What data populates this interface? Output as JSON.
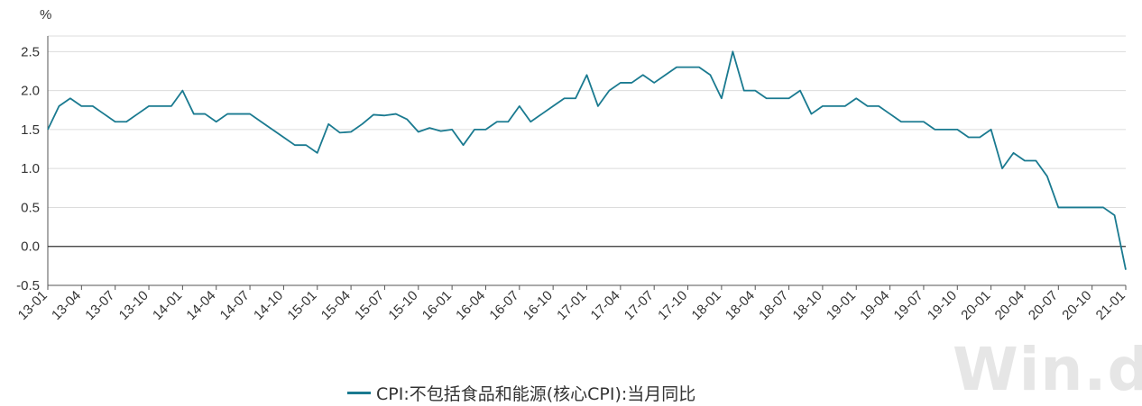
{
  "watermark": "Win.d",
  "chart_data": {
    "type": "line",
    "title": "",
    "xlabel": "",
    "ylabel": "%",
    "ylim": [
      -0.5,
      2.7
    ],
    "yticks": [
      "2.5",
      "2.0",
      "1.5",
      "1.0",
      "0.5",
      "0.0",
      "-0.5"
    ],
    "ytick_values": [
      2.5,
      2.0,
      1.5,
      1.0,
      0.5,
      0.0,
      -0.5
    ],
    "grid": "horizontal",
    "legend_position": "bottom",
    "xtick_labels": [
      "13-01",
      "13-04",
      "13-07",
      "13-10",
      "14-01",
      "14-04",
      "14-07",
      "14-10",
      "15-01",
      "15-04",
      "15-07",
      "15-10",
      "16-01",
      "16-04",
      "16-07",
      "16-10",
      "17-01",
      "17-04",
      "17-07",
      "17-10",
      "18-01",
      "18-04",
      "18-07",
      "18-10",
      "19-01",
      "19-04",
      "19-07",
      "19-10",
      "20-01",
      "20-04",
      "20-07",
      "20-10",
      "21-01"
    ],
    "x": [
      "13-01",
      "13-02",
      "13-03",
      "13-04",
      "13-05",
      "13-06",
      "13-07",
      "13-08",
      "13-09",
      "13-10",
      "13-11",
      "13-12",
      "14-01",
      "14-02",
      "14-03",
      "14-04",
      "14-05",
      "14-06",
      "14-07",
      "14-08",
      "14-09",
      "14-10",
      "14-11",
      "14-12",
      "15-01",
      "15-02",
      "15-03",
      "15-04",
      "15-05",
      "15-06",
      "15-07",
      "15-08",
      "15-09",
      "15-10",
      "15-11",
      "15-12",
      "16-01",
      "16-02",
      "16-03",
      "16-04",
      "16-05",
      "16-06",
      "16-07",
      "16-08",
      "16-09",
      "16-10",
      "16-11",
      "16-12",
      "17-01",
      "17-02",
      "17-03",
      "17-04",
      "17-05",
      "17-06",
      "17-07",
      "17-08",
      "17-09",
      "17-10",
      "17-11",
      "17-12",
      "18-01",
      "18-02",
      "18-03",
      "18-04",
      "18-05",
      "18-06",
      "18-07",
      "18-08",
      "18-09",
      "18-10",
      "18-11",
      "18-12",
      "19-01",
      "19-02",
      "19-03",
      "19-04",
      "19-05",
      "19-06",
      "19-07",
      "19-08",
      "19-09",
      "19-10",
      "19-11",
      "19-12",
      "20-01",
      "20-02",
      "20-03",
      "20-04",
      "20-05",
      "20-06",
      "20-07",
      "20-08",
      "20-09",
      "20-10",
      "20-11",
      "20-12",
      "21-01"
    ],
    "series": [
      {
        "name": "CPI:不包括食品和能源(核心CPI):当月同比",
        "color": "#1a7a90",
        "values": [
          1.5,
          1.8,
          1.9,
          1.8,
          1.8,
          1.7,
          1.6,
          1.6,
          1.7,
          1.8,
          1.8,
          1.8,
          2.0,
          1.7,
          1.7,
          1.6,
          1.7,
          1.7,
          1.7,
          1.6,
          1.5,
          1.4,
          1.3,
          1.3,
          1.2,
          1.57,
          1.46,
          1.47,
          1.57,
          1.69,
          1.68,
          1.7,
          1.63,
          1.47,
          1.52,
          1.48,
          1.5,
          1.3,
          1.5,
          1.5,
          1.6,
          1.6,
          1.8,
          1.6,
          1.7,
          1.8,
          1.9,
          1.9,
          2.2,
          1.8,
          2.0,
          2.1,
          2.1,
          2.2,
          2.1,
          2.2,
          2.3,
          2.3,
          2.3,
          2.2,
          1.9,
          2.5,
          2.0,
          2.0,
          1.9,
          1.9,
          1.9,
          2.0,
          1.7,
          1.8,
          1.8,
          1.8,
          1.9,
          1.8,
          1.8,
          1.7,
          1.6,
          1.6,
          1.6,
          1.5,
          1.5,
          1.5,
          1.4,
          1.4,
          1.5,
          1.0,
          1.2,
          1.1,
          1.1,
          0.9,
          0.5,
          0.5,
          0.5,
          0.5,
          0.5,
          0.4,
          -0.3
        ]
      }
    ]
  }
}
